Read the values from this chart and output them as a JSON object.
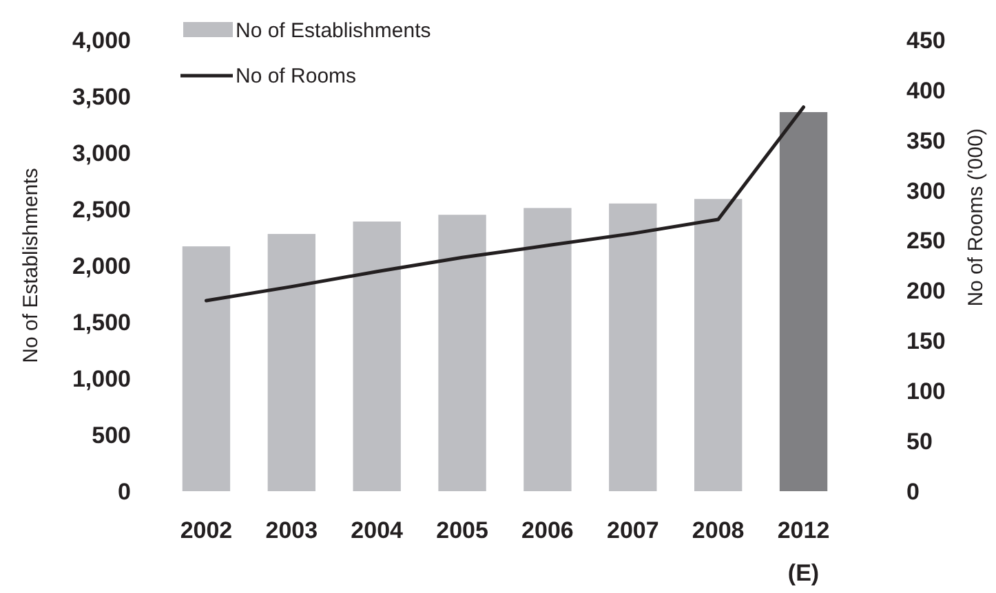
{
  "chart_data": {
    "type": "bar",
    "categories": [
      "2002",
      "2003",
      "2004",
      "2005",
      "2006",
      "2007",
      "2008",
      "2012\n(E)"
    ],
    "ylabel": "No of Establishments",
    "y2label": "No of Rooms ('000)",
    "series": [
      {
        "name": "No of Establishments",
        "color": "#bdbec2",
        "colors": [
          "#bdbec2",
          "#bdbec2",
          "#bdbec2",
          "#bdbec2",
          "#bdbec2",
          "#bdbec2",
          "#bdbec2",
          "#808083"
        ],
        "values": [
          2170,
          2280,
          2390,
          2450,
          2510,
          2550,
          2590,
          3360
        ]
      },
      {
        "name": "No of Rooms",
        "type": "line",
        "axis": "y2",
        "color": "#231f20",
        "values": [
          190,
          204,
          219,
          233,
          245,
          257,
          271,
          383
        ]
      }
    ],
    "ylim": [
      0,
      4000
    ],
    "yticks": [
      {
        "value": 0,
        "label": "0"
      },
      {
        "value": 500,
        "label": "500"
      },
      {
        "value": 1000,
        "label": "1,000"
      },
      {
        "value": 1500,
        "label": "1,500"
      },
      {
        "value": 2000,
        "label": "2,000"
      },
      {
        "value": 2500,
        "label": "2,500"
      },
      {
        "value": 3000,
        "label": "3,000"
      },
      {
        "value": 3500,
        "label": "3,500"
      },
      {
        "value": 4000,
        "label": "4,000"
      }
    ],
    "y2lim": [
      0,
      450
    ],
    "y2ticks": [
      0,
      50,
      100,
      150,
      200,
      250,
      300,
      350,
      400,
      450
    ],
    "legend": "top left"
  }
}
